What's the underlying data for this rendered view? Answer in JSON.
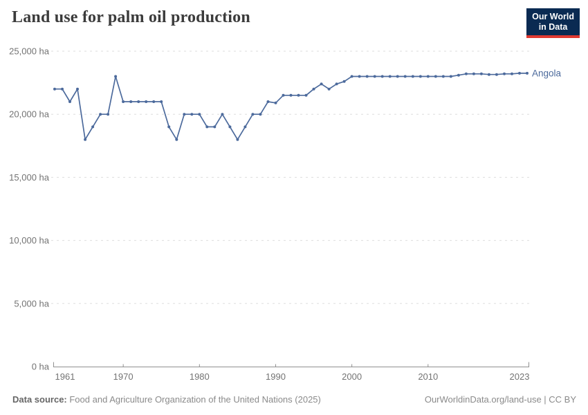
{
  "header": {
    "title": "Land use for palm oil production",
    "logo": {
      "line1": "Our World",
      "line2": "in Data"
    }
  },
  "chart_data": {
    "type": "line",
    "title": "Land use for palm oil production",
    "entity": "Angola",
    "unit": "ha",
    "xlim": [
      1961,
      2023
    ],
    "ylim": [
      0,
      25000
    ],
    "grid": "horizontal-dashed",
    "legend_position": "end-of-line-label",
    "years": [
      1961,
      1962,
      1963,
      1964,
      1965,
      1966,
      1967,
      1968,
      1969,
      1970,
      1971,
      1972,
      1973,
      1974,
      1975,
      1976,
      1977,
      1978,
      1979,
      1980,
      1981,
      1982,
      1983,
      1984,
      1985,
      1986,
      1987,
      1988,
      1989,
      1990,
      1991,
      1992,
      1993,
      1994,
      1995,
      1996,
      1997,
      1998,
      1999,
      2000,
      2001,
      2002,
      2003,
      2004,
      2005,
      2006,
      2007,
      2008,
      2009,
      2010,
      2011,
      2012,
      2013,
      2014,
      2015,
      2016,
      2017,
      2018,
      2019,
      2020,
      2021,
      2022,
      2023
    ],
    "values": [
      22000,
      22000,
      21000,
      22000,
      18000,
      19000,
      20000,
      20000,
      23000,
      21000,
      21000,
      21000,
      21000,
      21000,
      21000,
      19000,
      18000,
      20000,
      20000,
      20000,
      19000,
      19000,
      20000,
      19000,
      18000,
      19000,
      20000,
      20000,
      21000,
      20900,
      21500,
      21500,
      21500,
      21500,
      22000,
      22400,
      22000,
      22400,
      22600,
      23000,
      23000,
      23000,
      23000,
      23000,
      23000,
      23000,
      23000,
      23000,
      23000,
      23000,
      23000,
      23000,
      23000,
      23100,
      23200,
      23200,
      23200,
      23150,
      23150,
      23200,
      23200,
      23250,
      23250
    ],
    "y_ticks": [
      {
        "label": "25,000 ha",
        "value": 25000
      },
      {
        "label": "20,000 ha",
        "value": 20000
      },
      {
        "label": "15,000 ha",
        "value": 15000
      },
      {
        "label": "10,000 ha",
        "value": 10000
      },
      {
        "label": "5,000 ha",
        "value": 5000
      },
      {
        "label": "0 ha",
        "value": 0
      }
    ],
    "x_ticks": [
      {
        "label": "1961",
        "year": 1961
      },
      {
        "label": "1970",
        "year": 1970
      },
      {
        "label": "1980",
        "year": 1980
      },
      {
        "label": "1990",
        "year": 1990
      },
      {
        "label": "2000",
        "year": 2000
      },
      {
        "label": "2010",
        "year": 2010
      },
      {
        "label": "2023",
        "year": 2023
      }
    ]
  },
  "colors": {
    "line": "#4c6a9c",
    "entity_label": "#4c6a9c",
    "grid": "#dddddd",
    "axis": "#8f8f8f",
    "tick_label": "#737373",
    "logo_bg": "#0a2a52",
    "logo_red": "#e03931"
  },
  "footer": {
    "source_label": "Data source:",
    "source_text": " Food and Agriculture Organization of the United Nations (2025)",
    "link_text": "OurWorldinData.org/land-use | CC BY"
  }
}
